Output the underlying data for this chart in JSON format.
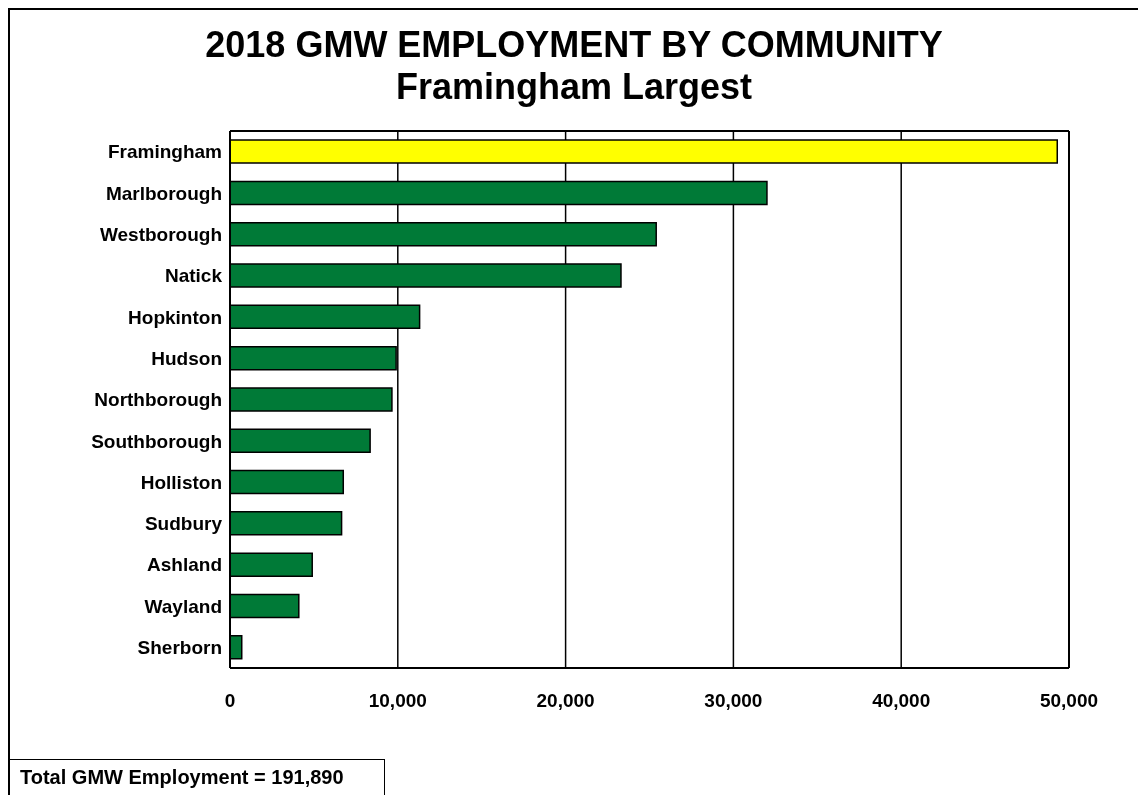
{
  "chart_data": {
    "type": "bar",
    "title": "2018 GMW EMPLOYMENT BY COMMUNITY",
    "subtitle": "Framingham Largest",
    "orientation": "horizontal",
    "categories": [
      "Framingham",
      "Marlborough",
      "Westborough",
      "Natick",
      "Hopkinton",
      "Hudson",
      "Northborough",
      "Southborough",
      "Holliston",
      "Sudbury",
      "Ashland",
      "Wayland",
      "Sherborn"
    ],
    "values": [
      49300,
      32000,
      25400,
      23300,
      11300,
      9900,
      9650,
      8350,
      6750,
      6650,
      4900,
      4100,
      700
    ],
    "colors": [
      "#ffff00",
      "#007a37",
      "#007a37",
      "#007a37",
      "#007a37",
      "#007a37",
      "#007a37",
      "#007a37",
      "#007a37",
      "#007a37",
      "#007a37",
      "#007a37",
      "#007a37"
    ],
    "xlim": [
      0,
      50000
    ],
    "xticks": [
      {
        "value": 0,
        "label": "0"
      },
      {
        "value": 10000,
        "label": "10,000"
      },
      {
        "value": 20000,
        "label": "20,000"
      },
      {
        "value": 30000,
        "label": "30,000"
      },
      {
        "value": 40000,
        "label": "40,000"
      },
      {
        "value": 50000,
        "label": "50,000"
      }
    ],
    "grid": "x",
    "annotations": [
      "Total GMW Employment = 191,890"
    ]
  }
}
